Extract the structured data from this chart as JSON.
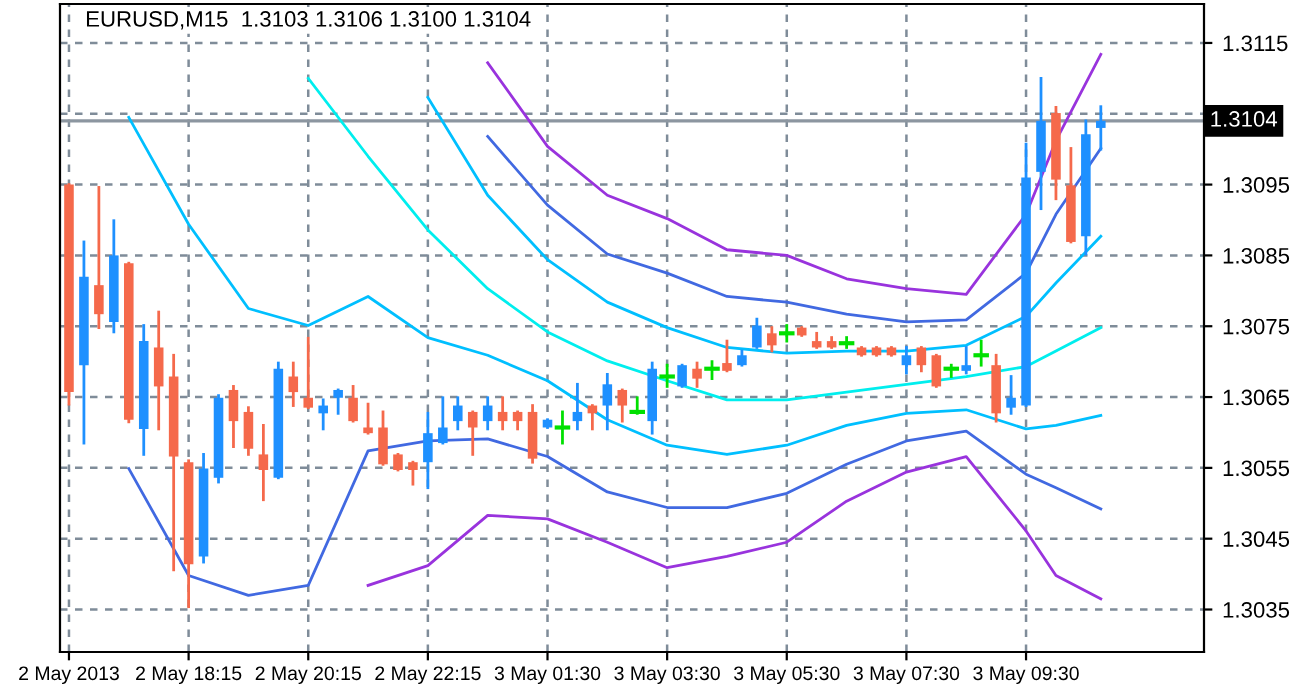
{
  "chart_data": {
    "type": "candlestick",
    "title": "EURUSD,M15  1.3103 1.3106 1.3100 1.3104",
    "categories": [
      "2 May 2013",
      null,
      null,
      null,
      null,
      null,
      null,
      null,
      "2 May 18:15",
      null,
      null,
      null,
      null,
      null,
      null,
      null,
      "2 May 20:15",
      null,
      null,
      null,
      null,
      null,
      null,
      null,
      "2 May 22:15",
      null,
      null,
      null,
      null,
      null,
      null,
      null,
      "3 May 01:30",
      null,
      null,
      null,
      null,
      null,
      null,
      null,
      "3 May 03:30",
      null,
      null,
      null,
      null,
      null,
      null,
      null,
      "3 May 05:30",
      null,
      null,
      null,
      null,
      null,
      null,
      null,
      "3 May 07:30",
      null,
      null,
      null,
      null,
      null,
      null,
      null,
      "3 May 09:30",
      null,
      null,
      null,
      null,
      null
    ],
    "ohlc": [
      [
        1.3095,
        1.3095,
        1.3064,
        1.30657
      ],
      [
        1.30695,
        1.30869,
        1.30585,
        1.3082
      ],
      [
        1.30808,
        1.30946,
        1.30748,
        1.30767
      ],
      [
        1.30756,
        1.30899,
        1.30742,
        1.3085
      ],
      [
        1.30839,
        1.30839,
        1.30615,
        1.30618
      ],
      [
        1.30605,
        1.30751,
        1.30569,
        1.30729
      ],
      [
        1.3072,
        1.3077,
        1.30605,
        1.30665
      ],
      [
        1.30679,
        1.30709,
        1.30406,
        1.30566
      ],
      [
        1.30558,
        1.3056,
        1.30354,
        1.30414
      ],
      [
        1.30425,
        1.30569,
        1.30417,
        1.30549
      ],
      [
        1.30536,
        1.30652,
        1.3053,
        1.30649
      ],
      [
        1.3066,
        1.30665,
        1.3058,
        1.30616
      ],
      [
        1.30629,
        1.30635,
        1.30569,
        1.30577
      ],
      [
        1.30569,
        1.3061,
        1.30505,
        1.30547
      ],
      [
        1.30536,
        1.30698,
        1.30536,
        1.3069
      ],
      [
        1.30679,
        1.30698,
        1.30638,
        1.30657
      ],
      [
        1.30649,
        1.30733,
        1.30635,
        1.30635
      ],
      [
        1.30627,
        1.30646,
        1.30605,
        1.30638
      ],
      [
        1.30649,
        1.3066,
        1.30627,
        1.3066
      ],
      [
        1.30649,
        1.30665,
        1.30616,
        1.30616
      ],
      [
        1.30607,
        1.3064,
        1.30599,
        1.30599
      ],
      [
        1.30607,
        1.30629,
        1.30555,
        1.30555
      ],
      [
        1.30569,
        1.30569,
        1.30547,
        1.30547
      ],
      [
        1.30558,
        1.30558,
        1.30527,
        1.30547
      ],
      [
        1.30558,
        1.30627,
        1.30522,
        1.30599
      ],
      [
        1.30585,
        1.30649,
        1.30585,
        1.30607
      ],
      [
        1.30616,
        1.30649,
        1.30605,
        1.30638
      ],
      [
        1.30629,
        1.30629,
        1.30569,
        1.30607
      ],
      [
        1.30616,
        1.30649,
        1.30605,
        1.30638
      ],
      [
        1.30629,
        1.30649,
        1.30605,
        1.30616
      ],
      [
        1.30629,
        1.30629,
        1.30605,
        1.30616
      ],
      [
        1.30629,
        1.30638,
        1.30558,
        1.30563
      ],
      [
        1.30607,
        1.30618,
        1.30607,
        1.30618
      ],
      [
        1.30607,
        1.30629,
        1.30585,
        1.30607
      ],
      [
        1.30616,
        1.30668,
        1.30605,
        1.30629
      ],
      [
        1.30638,
        1.30638,
        1.30605,
        1.30627
      ],
      [
        1.30638,
        1.30682,
        1.30605,
        1.30668
      ],
      [
        1.3066,
        1.3066,
        1.30616,
        1.30638
      ],
      [
        1.30629,
        1.30649,
        1.30627,
        1.30629
      ],
      [
        1.30616,
        1.30698,
        1.30599,
        1.3069
      ],
      [
        1.30679,
        1.30695,
        1.30665,
        1.30679
      ],
      [
        1.30665,
        1.30695,
        1.30665,
        1.30695
      ],
      [
        1.3069,
        1.30698,
        1.30665,
        1.30676
      ],
      [
        1.3069,
        1.307,
        1.30676,
        1.3069
      ],
      [
        1.30698,
        1.30729,
        1.30687,
        1.30687
      ],
      [
        1.30695,
        1.30715,
        1.30695,
        1.30709
      ],
      [
        1.3072,
        1.3076,
        1.3072,
        1.30751
      ],
      [
        1.3074,
        1.30748,
        1.30715,
        1.30723
      ],
      [
        1.3074,
        1.30751,
        1.30729,
        1.3074
      ],
      [
        1.30748,
        1.30748,
        1.30737,
        1.30737
      ],
      [
        1.30729,
        1.3074,
        1.3072,
        1.3072
      ],
      [
        1.30729,
        1.30734,
        1.3072,
        1.3072
      ],
      [
        1.30726,
        1.30734,
        1.3072,
        1.30726
      ],
      [
        1.3072,
        1.3072,
        1.30709,
        1.30709
      ],
      [
        1.3072,
        1.3072,
        1.30709,
        1.30709
      ],
      [
        1.3072,
        1.3072,
        1.30709,
        1.30709
      ],
      [
        1.30695,
        1.3072,
        1.30684,
        1.30709
      ],
      [
        1.3072,
        1.3072,
        1.30687,
        1.30695
      ],
      [
        1.30709,
        1.30709,
        1.30665,
        1.30665
      ],
      [
        1.3069,
        1.30695,
        1.30679,
        1.3069
      ],
      [
        1.30687,
        1.3072,
        1.30684,
        1.30695
      ],
      [
        1.30709,
        1.30729,
        1.30695,
        1.30709
      ],
      [
        1.30695,
        1.30709,
        1.30616,
        1.30627
      ],
      [
        1.30635,
        1.30679,
        1.30627,
        1.30649
      ],
      [
        1.30638,
        1.31007,
        1.30638,
        1.3096
      ],
      [
        1.30968,
        1.311,
        1.30916,
        1.3104
      ],
      [
        1.31051,
        1.31059,
        1.3093,
        1.30957
      ],
      [
        1.30949,
        1.31001,
        1.30869,
        1.30869
      ],
      [
        1.30877,
        1.3104,
        1.30852,
        1.31021
      ],
      [
        1.3103,
        1.3106,
        1.31,
        1.3104
      ]
    ],
    "colors": [
      "#f5694b",
      "#1e90ff",
      "#f5694b",
      "#1e90ff",
      "#f5694b",
      "#1e90ff",
      "#f5694b",
      "#f5694b",
      "#f5694b",
      "#1e90ff",
      "#1e90ff",
      "#f5694b",
      "#f5694b",
      "#f5694b",
      "#1e90ff",
      "#f5694b",
      "#f5694b",
      "#1e90ff",
      "#1e90ff",
      "#f5694b",
      "#f5694b",
      "#f5694b",
      "#f5694b",
      "#f5694b",
      "#1e90ff",
      "#1e90ff",
      "#1e90ff",
      "#f5694b",
      "#1e90ff",
      "#f5694b",
      "#f5694b",
      "#f5694b",
      "#1e90ff",
      "#00e000",
      "#1e90ff",
      "#f5694b",
      "#1e90ff",
      "#f5694b",
      "#00e000",
      "#1e90ff",
      "#00e000",
      "#1e90ff",
      "#f5694b",
      "#00e000",
      "#f5694b",
      "#1e90ff",
      "#1e90ff",
      "#f5694b",
      "#00e000",
      "#f5694b",
      "#f5694b",
      "#f5694b",
      "#00e000",
      "#f5694b",
      "#f5694b",
      "#f5694b",
      "#1e90ff",
      "#f5694b",
      "#f5694b",
      "#00e000",
      "#1e90ff",
      "#00e000",
      "#f5694b",
      "#1e90ff",
      "#1e90ff",
      "#1e90ff",
      "#f5694b",
      "#f5694b",
      "#1e90ff",
      "#1e90ff"
    ],
    "series": [
      {
        "type": "line",
        "color": "#9933dd",
        "values": [
          null,
          null,
          null,
          null,
          null,
          null,
          null,
          null,
          null,
          null,
          null,
          null,
          null,
          null,
          null,
          null,
          null,
          null,
          null,
          null,
          null,
          null,
          null,
          null,
          null,
          null,
          null,
          null,
          1.31122,
          null,
          null,
          null,
          1.31004,
          null,
          null,
          null,
          1.30935,
          null,
          null,
          null,
          1.30902,
          null,
          null,
          null,
          1.30858,
          null,
          null,
          null,
          1.3085,
          null,
          null,
          null,
          1.30817,
          null,
          null,
          null,
          1.30803,
          null,
          null,
          null,
          1.30795,
          null,
          null,
          null,
          1.30908,
          null,
          1.31012,
          null,
          null,
          1.31134
        ]
      },
      {
        "type": "line",
        "color": "#4169e1",
        "values": [
          null,
          null,
          null,
          null,
          null,
          null,
          null,
          null,
          null,
          null,
          null,
          null,
          null,
          null,
          null,
          null,
          null,
          null,
          null,
          null,
          null,
          null,
          null,
          null,
          null,
          null,
          null,
          null,
          1.31018,
          null,
          null,
          null,
          1.30921,
          null,
          null,
          null,
          1.30852,
          null,
          null,
          null,
          1.30825,
          null,
          null,
          null,
          1.30792,
          null,
          null,
          null,
          1.30784,
          null,
          null,
          null,
          1.30767,
          null,
          null,
          null,
          1.30756,
          null,
          null,
          null,
          1.30759,
          null,
          null,
          null,
          1.30825,
          null,
          1.30908,
          null,
          null,
          1.31001
        ]
      },
      {
        "type": "line",
        "color": "#00bfff",
        "values": [
          null,
          null,
          null,
          null,
          null,
          null,
          null,
          null,
          null,
          null,
          null,
          null,
          null,
          null,
          null,
          null,
          null,
          null,
          null,
          null,
          null,
          null,
          null,
          null,
          1.31073,
          null,
          null,
          null,
          1.30935,
          null,
          null,
          null,
          1.30844,
          null,
          null,
          null,
          1.30784,
          null,
          null,
          null,
          1.30748,
          null,
          null,
          null,
          1.3072,
          null,
          null,
          null,
          1.30712,
          null,
          null,
          null,
          1.30715,
          null,
          null,
          null,
          1.30715,
          null,
          null,
          null,
          1.30723,
          null,
          null,
          null,
          1.30764,
          null,
          1.30811,
          null,
          null,
          1.30877
        ]
      },
      {
        "type": "line",
        "color": "#00eeee",
        "values": [
          null,
          null,
          null,
          null,
          null,
          null,
          null,
          null,
          null,
          null,
          null,
          null,
          null,
          null,
          null,
          null,
          1.311,
          null,
          null,
          null,
          1.3099,
          null,
          null,
          null,
          1.30886,
          null,
          null,
          null,
          1.30803,
          null,
          null,
          null,
          1.30742,
          null,
          null,
          null,
          1.30701,
          null,
          null,
          null,
          1.30673,
          null,
          null,
          null,
          1.30646,
          null,
          null,
          null,
          1.30646,
          null,
          null,
          null,
          1.30657,
          null,
          null,
          null,
          1.30668,
          null,
          null,
          null,
          1.30679,
          null,
          null,
          null,
          1.30693,
          null,
          1.30715,
          null,
          null,
          1.30748
        ]
      },
      {
        "type": "line",
        "color": "#00bfff",
        "values": [
          null,
          null,
          null,
          null,
          1.31045,
          null,
          null,
          null,
          1.30894,
          null,
          null,
          null,
          1.30775,
          null,
          null,
          null,
          1.30751,
          null,
          null,
          null,
          1.30792,
          null,
          null,
          null,
          1.30734,
          null,
          null,
          null,
          1.30709,
          null,
          null,
          null,
          1.30673,
          null,
          null,
          null,
          1.30618,
          null,
          null,
          null,
          1.30582,
          null,
          null,
          null,
          1.30569,
          null,
          null,
          null,
          1.30582,
          null,
          null,
          null,
          1.3061,
          null,
          null,
          null,
          1.30627,
          null,
          null,
          null,
          1.30632,
          null,
          null,
          null,
          1.30605,
          null,
          1.3061,
          null,
          null,
          1.30624
        ]
      },
      {
        "type": "line",
        "color": "#4169e1",
        "values": [
          null,
          null,
          null,
          null,
          1.30549,
          null,
          null,
          null,
          1.30398,
          null,
          null,
          null,
          1.3037,
          null,
          null,
          null,
          1.30384,
          null,
          null,
          null,
          1.30574,
          null,
          null,
          null,
          1.30588,
          null,
          null,
          null,
          1.30591,
          null,
          null,
          null,
          1.30566,
          null,
          null,
          null,
          1.30516,
          null,
          null,
          null,
          1.30494,
          null,
          null,
          null,
          1.30494,
          null,
          null,
          null,
          1.30514,
          null,
          null,
          null,
          1.30555,
          null,
          null,
          null,
          1.30588,
          null,
          null,
          null,
          1.30602,
          null,
          null,
          null,
          1.30541,
          null,
          1.30522,
          null,
          null,
          1.30492
        ]
      },
      {
        "type": "line",
        "color": "#9933dd",
        "values": [
          null,
          null,
          null,
          null,
          null,
          null,
          null,
          null,
          null,
          null,
          null,
          null,
          null,
          null,
          null,
          null,
          null,
          null,
          null,
          null,
          1.30384,
          null,
          null,
          null,
          1.30412,
          null,
          null,
          null,
          1.30483,
          null,
          null,
          null,
          1.30478,
          null,
          null,
          null,
          1.30445,
          null,
          null,
          null,
          1.30409,
          null,
          null,
          null,
          1.30425,
          null,
          null,
          null,
          1.30445,
          null,
          null,
          null,
          1.30503,
          null,
          null,
          null,
          1.30544,
          null,
          null,
          null,
          1.30566,
          null,
          null,
          null,
          1.30461,
          null,
          1.30398,
          null,
          null,
          1.30365
        ]
      }
    ],
    "ylim": [
      1.3029,
      1.31205
    ],
    "yticks": [
      1.3035,
      1.3045,
      1.3055,
      1.3065,
      1.3075,
      1.3085,
      1.3095,
      {
        "value": 1.3105,
        "label": null
      },
      1.3115
    ],
    "ref_lines": [
      {
        "axis": "y",
        "value": 1.3104,
        "label": "1.3104",
        "color": "#8c96a0"
      }
    ],
    "grid": true
  }
}
